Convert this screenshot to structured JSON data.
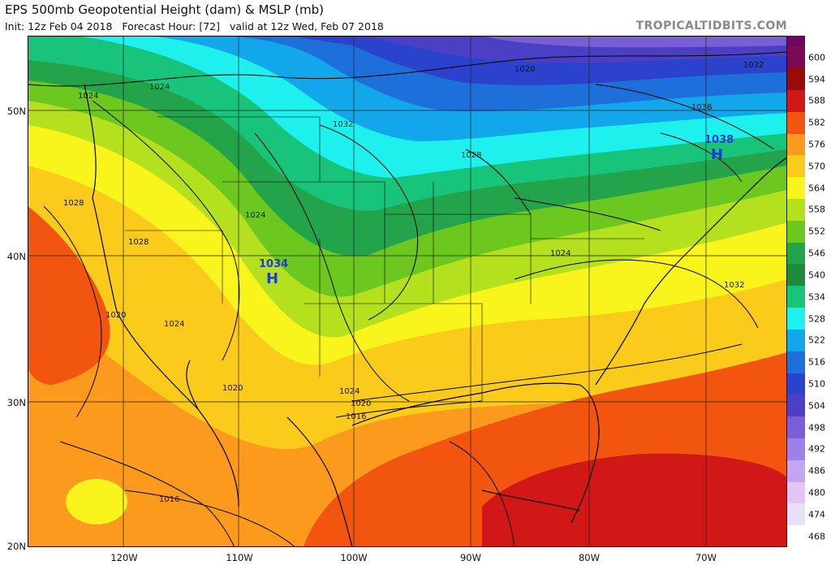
{
  "header": {
    "title": "EPS 500mb Geopotential Height (dam) & MSLP (mb)",
    "init": "Init: 12z Feb 04 2018",
    "forecast": "Forecast Hour: [72]",
    "valid": "valid at 12z Wed, Feb 07 2018",
    "brand": "TROPICALTIDBITS.COM"
  },
  "axes": {
    "lat_labels": [
      "50N",
      "40N",
      "30N",
      "20N"
    ],
    "lon_labels": [
      "120W",
      "110W",
      "100W",
      "90W",
      "80W",
      "70W"
    ]
  },
  "colorbar": {
    "labels": [
      "600",
      "594",
      "588",
      "582",
      "576",
      "570",
      "564",
      "558",
      "552",
      "546",
      "540",
      "534",
      "528",
      "522",
      "516",
      "510",
      "504",
      "498",
      "492",
      "486",
      "480",
      "474",
      "468"
    ],
    "colors": [
      "#7a0a55",
      "#9b0a0a",
      "#d21717",
      "#f2550f",
      "#fb9a1c",
      "#fbcb1c",
      "#f9f51c",
      "#b5e01d",
      "#6cc81f",
      "#23a34a",
      "#1f8a3b",
      "#17c47a",
      "#1ef0ee",
      "#12a6ea",
      "#1d6fd9",
      "#2b43cc",
      "#4b3fc4",
      "#7a5ed5",
      "#9b82e6",
      "#c4a6f0",
      "#e2c4f5",
      "#e9e0f7",
      "#ffffff"
    ]
  },
  "pressure_labels": [
    "1024",
    "1024",
    "1020",
    "1032",
    "1028",
    "1036",
    "1032",
    "1028",
    "1024",
    "1028",
    "1020",
    "1024",
    "1020",
    "1024",
    "1020",
    "1016",
    "1032",
    "1024",
    "1016"
  ],
  "highs": [
    {
      "value": "1034",
      "symbol": "H"
    },
    {
      "value": "1038",
      "symbol": "H"
    }
  ]
}
